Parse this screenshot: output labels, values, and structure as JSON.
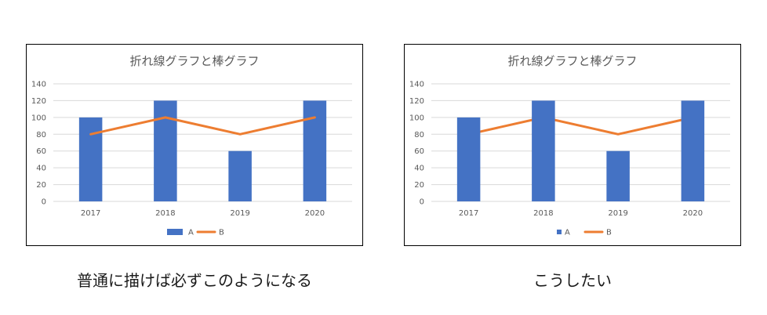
{
  "chart_data": [
    {
      "type": "bar",
      "title": "折れ線グラフと棒グラフ",
      "xlabel": "",
      "ylabel": "",
      "categories": [
        "2017",
        "2018",
        "2019",
        "2020"
      ],
      "series": [
        {
          "name": "A",
          "type": "bar",
          "values": [
            100,
            120,
            60,
            120
          ],
          "color": "#4472C4"
        },
        {
          "name": "B",
          "type": "line",
          "values": [
            80,
            100,
            80,
            100
          ],
          "color": "#ED7D31"
        }
      ],
      "ylim": [
        0,
        140
      ],
      "yticks": [
        0,
        20,
        40,
        60,
        80,
        100,
        120,
        140
      ],
      "grid": true,
      "grid_color": "#D9D9D9",
      "legend": "bottom",
      "draw_order": [
        "bar",
        "line"
      ],
      "legend_bar_marker": "rectangle"
    },
    {
      "type": "bar",
      "title": "折れ線グラフと棒グラフ",
      "xlabel": "",
      "ylabel": "",
      "categories": [
        "2017",
        "2018",
        "2019",
        "2020"
      ],
      "series": [
        {
          "name": "A",
          "type": "bar",
          "values": [
            100,
            120,
            60,
            120
          ],
          "color": "#4472C4"
        },
        {
          "name": "B",
          "type": "line",
          "values": [
            80,
            100,
            80,
            100
          ],
          "color": "#ED7D31"
        }
      ],
      "ylim": [
        0,
        140
      ],
      "yticks": [
        0,
        20,
        40,
        60,
        80,
        100,
        120,
        140
      ],
      "grid": true,
      "grid_color": "#D9D9D9",
      "legend": "bottom",
      "draw_order": [
        "line",
        "bar"
      ],
      "legend_bar_marker": "square"
    }
  ],
  "captions": [
    "普通に描けば必ずこのようになる",
    "こうしたい"
  ]
}
